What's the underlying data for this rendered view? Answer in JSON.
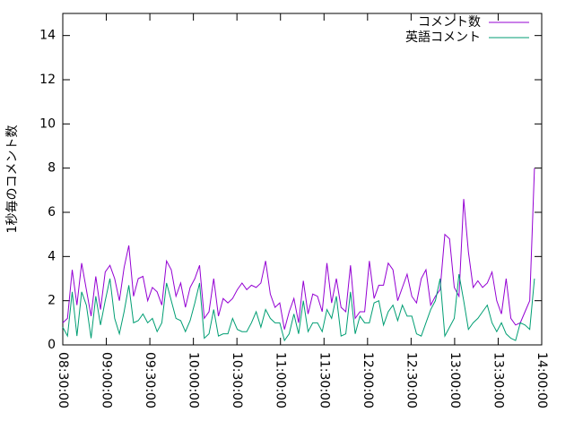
{
  "chart_data": {
    "type": "line",
    "ylabel": "1秒毎のコメント数",
    "legend": "top-right",
    "x": [
      "08:30:00",
      "08:33:15",
      "08:36:30",
      "08:39:45",
      "08:43:00",
      "08:46:15",
      "08:49:30",
      "08:52:45",
      "08:56:00",
      "08:59:15",
      "09:02:30",
      "09:05:45",
      "09:09:00",
      "09:12:15",
      "09:15:30",
      "09:18:45",
      "09:22:00",
      "09:25:15",
      "09:28:30",
      "09:31:45",
      "09:35:00",
      "09:38:15",
      "09:41:30",
      "09:44:45",
      "09:48:00",
      "09:51:15",
      "09:54:30",
      "09:57:45",
      "10:01:00",
      "10:04:15",
      "10:07:30",
      "10:10:45",
      "10:14:00",
      "10:17:15",
      "10:20:30",
      "10:23:45",
      "10:27:00",
      "10:30:15",
      "10:33:30",
      "10:36:45",
      "10:40:00",
      "10:43:15",
      "10:46:30",
      "10:49:45",
      "10:53:00",
      "10:56:15",
      "10:59:30",
      "11:02:45",
      "11:06:00",
      "11:09:15",
      "11:12:30",
      "11:15:45",
      "11:19:00",
      "11:22:15",
      "11:25:30",
      "11:28:45",
      "11:32:00",
      "11:35:15",
      "11:38:30",
      "11:41:45",
      "11:45:00",
      "11:48:15",
      "11:51:30",
      "11:54:45",
      "11:58:00",
      "12:01:15",
      "12:04:30",
      "12:07:45",
      "12:11:00",
      "12:14:15",
      "12:17:30",
      "12:20:45",
      "12:24:00",
      "12:27:15",
      "12:30:30",
      "12:33:45",
      "12:37:00",
      "12:40:15",
      "12:43:30",
      "12:46:45",
      "12:50:00",
      "12:53:15",
      "12:56:30",
      "12:59:45",
      "13:03:00",
      "13:06:15",
      "13:09:30",
      "13:12:45",
      "13:16:00",
      "13:19:15",
      "13:22:30",
      "13:25:45",
      "13:29:00",
      "13:32:15",
      "13:35:30",
      "13:38:45",
      "13:42:00",
      "13:45:15",
      "13:48:30",
      "13:51:45",
      "13:55:00"
    ],
    "series": [
      {
        "name": "コメント数",
        "color": "#9400d3",
        "values": [
          1.0,
          1.2,
          3.4,
          1.8,
          3.7,
          2.5,
          1.3,
          3.1,
          1.6,
          3.3,
          3.6,
          3.0,
          2.0,
          3.5,
          4.5,
          2.2,
          3.0,
          3.1,
          2.0,
          2.6,
          2.4,
          1.8,
          3.8,
          3.4,
          2.2,
          2.8,
          1.7,
          2.6,
          3.0,
          3.6,
          1.2,
          1.5,
          3.0,
          1.3,
          2.1,
          1.9,
          2.1,
          2.5,
          2.8,
          2.5,
          2.7,
          2.6,
          2.8,
          3.8,
          2.3,
          1.7,
          1.9,
          0.7,
          1.5,
          2.1,
          1.0,
          2.9,
          1.4,
          2.3,
          2.2,
          1.5,
          3.7,
          1.9,
          3.0,
          1.7,
          1.5,
          3.6,
          1.2,
          1.5,
          1.5,
          3.8,
          2.1,
          2.7,
          2.7,
          3.7,
          3.4,
          2.0,
          2.6,
          3.2,
          2.2,
          1.9,
          3.0,
          3.4,
          1.8,
          2.2,
          2.5,
          5.0,
          4.8,
          2.6,
          2.2,
          6.6,
          4.2,
          2.6,
          2.9,
          2.6,
          2.8,
          3.3,
          2.0,
          1.4,
          3.0,
          1.2,
          0.9,
          1.0,
          1.5,
          2.0,
          8.0
        ]
      },
      {
        "name": "英語コメント",
        "color": "#009e73",
        "values": [
          0.8,
          0.4,
          2.4,
          0.4,
          2.4,
          1.8,
          0.3,
          2.2,
          0.9,
          2.0,
          3.0,
          1.2,
          0.5,
          1.5,
          2.7,
          1.0,
          1.1,
          1.4,
          1.0,
          1.2,
          0.6,
          1.0,
          2.8,
          2.0,
          1.2,
          1.1,
          0.6,
          1.1,
          1.9,
          2.8,
          0.3,
          0.5,
          1.6,
          0.4,
          0.5,
          0.5,
          1.2,
          0.7,
          0.6,
          0.6,
          1.0,
          1.5,
          0.8,
          1.6,
          1.2,
          1.0,
          1.0,
          0.2,
          0.5,
          1.4,
          0.5,
          2.0,
          0.6,
          1.0,
          1.0,
          0.6,
          1.6,
          1.2,
          2.2,
          0.4,
          0.5,
          2.4,
          0.5,
          1.3,
          1.0,
          1.0,
          1.9,
          2.0,
          0.9,
          1.5,
          1.8,
          1.1,
          1.8,
          1.3,
          1.3,
          0.5,
          0.4,
          1.0,
          1.6,
          2.0,
          3.0,
          0.4,
          0.8,
          1.2,
          3.2,
          2.0,
          0.7,
          1.0,
          1.2,
          1.5,
          1.8,
          1.0,
          0.6,
          1.0,
          0.5,
          0.3,
          0.2,
          1.0,
          0.9,
          0.7,
          3.0
        ]
      }
    ],
    "xlim": [
      "08:30:00",
      "14:00:00"
    ],
    "xticks": [
      "08:30:00",
      "09:00:00",
      "09:30:00",
      "10:00:00",
      "10:30:00",
      "11:00:00",
      "11:30:00",
      "12:00:00",
      "12:30:00",
      "13:00:00",
      "13:30:00",
      "14:00:00"
    ],
    "ylim": [
      0,
      15
    ],
    "yticks": [
      0,
      2,
      4,
      6,
      8,
      10,
      12,
      14
    ]
  }
}
